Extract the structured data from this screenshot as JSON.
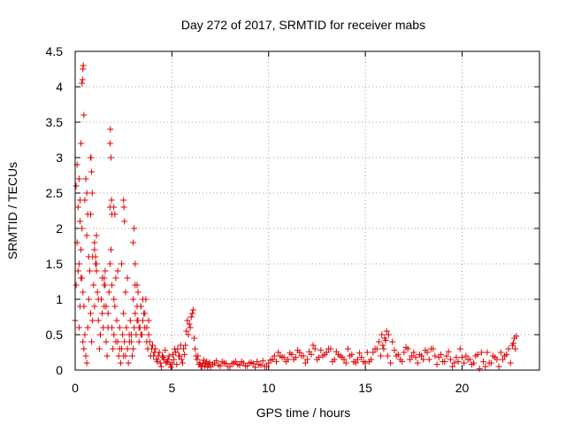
{
  "chart_data": {
    "type": "scatter",
    "title": "Day 272 of 2017, SRMTID for receiver mabs",
    "xlabel": "GPS time / hours",
    "ylabel": "SRMTID / TECUs",
    "xlim": [
      0,
      24
    ],
    "ylim": [
      0,
      4.5
    ],
    "x_ticks": [
      0,
      5,
      10,
      15,
      20
    ],
    "x_tick_labels": [
      "0",
      "5",
      "10",
      "15",
      "20"
    ],
    "y_ticks": [
      0,
      0.5,
      1,
      1.5,
      2,
      2.5,
      3,
      3.5,
      4,
      4.5
    ],
    "y_tick_labels": [
      "0",
      "0.5",
      "1",
      "1.5",
      "2",
      "2.5",
      "3",
      "3.5",
      "4",
      "4.5"
    ],
    "grid": true,
    "marker": "plus",
    "color": "#e00000",
    "series": [
      {
        "x": [
          0.0,
          0.05,
          0.1,
          0.15,
          0.2,
          0.25,
          0.3,
          0.35,
          0.4,
          0.45,
          0.5,
          0.55,
          0.6,
          0.65,
          0.7,
          0.75,
          0.8,
          0.85,
          0.9,
          0.95,
          1.0,
          1.05,
          1.1,
          1.15,
          1.2,
          1.25,
          1.3,
          1.35,
          1.4,
          1.45,
          1.5,
          1.55,
          1.6,
          1.65,
          1.7,
          1.75,
          1.8,
          1.85,
          1.9,
          1.95,
          2.0,
          2.05,
          2.1,
          2.15,
          2.2,
          2.25,
          2.3,
          2.35,
          2.4,
          2.45,
          2.5,
          2.55,
          2.6,
          2.65,
          2.7,
          2.75,
          2.8,
          2.85,
          2.9,
          2.95,
          3.0,
          3.05,
          3.1,
          3.15,
          3.2,
          3.25,
          3.3,
          3.35,
          3.4,
          3.45,
          3.5,
          3.55,
          3.6,
          3.65,
          3.7,
          3.75,
          3.8,
          3.85,
          3.9,
          3.95,
          0.05,
          0.1,
          0.15,
          0.2,
          0.25,
          0.3,
          0.35,
          0.4,
          0.45,
          0.5,
          0.55,
          0.6,
          0.7,
          0.8,
          0.9,
          1.0,
          1.1,
          1.2,
          1.3,
          1.4,
          1.5,
          1.6,
          1.7,
          1.8,
          1.9,
          2.0,
          2.1,
          2.2,
          2.3,
          2.4,
          2.5,
          2.6,
          2.7,
          2.8,
          2.9,
          3.0,
          3.1,
          3.2,
          3.3,
          3.4,
          0.35,
          0.38,
          0.4,
          0.42,
          0.45,
          0.8,
          0.82,
          0.85,
          0.88,
          1.8,
          1.82,
          1.85,
          1.88,
          1.9,
          2.5,
          2.52,
          2.55,
          0.2,
          0.25,
          0.3,
          0.6,
          0.65,
          1.0,
          1.05,
          1.1,
          1.5,
          1.55,
          2.0,
          2.05,
          3.0,
          3.05,
          3.1,
          3.2,
          3.25,
          3.4,
          3.5,
          3.6,
          3.7,
          3.8,
          4.0,
          4.1,
          4.2,
          4.3,
          4.4,
          4.5,
          4.6,
          4.7,
          4.8,
          4.9,
          5.0,
          5.1,
          5.2,
          5.3,
          5.4,
          5.5,
          5.6,
          5.7,
          5.75,
          5.8,
          5.85,
          5.9,
          5.95,
          6.0,
          6.05,
          6.1,
          6.15,
          6.2,
          6.25,
          6.3,
          6.4,
          6.5,
          6.6,
          6.7,
          6.8,
          6.9,
          7.0,
          7.2,
          7.4,
          7.6,
          7.8,
          8.0,
          8.2,
          8.4,
          8.6,
          8.8,
          9.0,
          9.2,
          9.4,
          9.6,
          9.8,
          10.0,
          10.2,
          10.4,
          10.6,
          10.8,
          11.0,
          11.2,
          11.4,
          11.6,
          11.8,
          12.0,
          12.2,
          12.4,
          12.6,
          12.8,
          13.0,
          13.2,
          13.4,
          13.6,
          13.8,
          14.0,
          14.2,
          14.4,
          14.6,
          14.8,
          15.0,
          15.2,
          15.4,
          15.6,
          15.8,
          15.9,
          16.0,
          16.1,
          16.2,
          16.4,
          16.6,
          16.8,
          17.0,
          17.2,
          17.4,
          17.6,
          17.8,
          18.0,
          18.2,
          18.4,
          18.6,
          18.8,
          19.0,
          19.2,
          19.4,
          19.6,
          19.8,
          20.0,
          20.2,
          20.4,
          20.6,
          20.8,
          21.0,
          21.2,
          21.4,
          21.6,
          21.8,
          22.0,
          22.2,
          22.4,
          22.6,
          22.7,
          22.8,
          4.05,
          4.15,
          4.25,
          4.35,
          4.45,
          4.55,
          4.65,
          4.75,
          4.85,
          4.95,
          5.05,
          5.15,
          5.25,
          5.35,
          5.45,
          5.55,
          5.65,
          6.35,
          6.45,
          6.55,
          6.65,
          6.75,
          6.85,
          6.95,
          7.1,
          7.3,
          7.5,
          7.7,
          7.9,
          8.1,
          8.3,
          8.5,
          8.7,
          8.9,
          9.1,
          9.3,
          9.5,
          9.7,
          9.9,
          10.1,
          10.3,
          10.5,
          10.7,
          10.9,
          11.1,
          11.3,
          11.5,
          11.7,
          11.9,
          12.1,
          12.3,
          12.5,
          12.7,
          12.9,
          13.1,
          13.3,
          13.5,
          13.7,
          13.9,
          14.1,
          14.3,
          14.5,
          14.7,
          14.9,
          15.1,
          15.3,
          15.5,
          15.7,
          15.85,
          15.95,
          16.05,
          16.15,
          16.3,
          16.5,
          16.7,
          16.9,
          17.1,
          17.3,
          17.5,
          17.7,
          17.9,
          18.1,
          18.3,
          18.5,
          18.7,
          18.9,
          19.1,
          19.3,
          19.5,
          19.7,
          19.9,
          20.1,
          20.3,
          20.5,
          20.7,
          20.9,
          21.1,
          21.3,
          21.5,
          21.7,
          21.9,
          22.1,
          22.3,
          22.5,
          22.65,
          22.75
        ],
        "y": [
          0.7,
          1.2,
          1.8,
          2.3,
          1.5,
          0.9,
          1.3,
          2.0,
          1.1,
          0.3,
          0.5,
          0.2,
          0.1,
          0.6,
          1.0,
          1.4,
          0.8,
          0.4,
          1.6,
          1.2,
          0.9,
          1.5,
          1.9,
          1.1,
          0.7,
          0.3,
          0.5,
          1.0,
          1.3,
          0.6,
          0.9,
          1.2,
          0.4,
          0.2,
          0.8,
          1.1,
          1.5,
          1.7,
          0.6,
          0.3,
          0.5,
          0.9,
          1.3,
          0.7,
          0.4,
          0.2,
          0.6,
          0.1,
          0.3,
          0.5,
          0.8,
          0.4,
          0.2,
          0.6,
          0.3,
          0.1,
          0.4,
          0.7,
          0.5,
          0.2,
          0.3,
          0.6,
          0.8,
          0.5,
          0.9,
          0.7,
          0.4,
          0.6,
          0.9,
          0.5,
          0.7,
          0.8,
          0.6,
          1.0,
          0.4,
          0.3,
          0.5,
          0.4,
          0.2,
          0.3,
          2.6,
          2.9,
          1.4,
          0.6,
          2.1,
          1.7,
          1.3,
          0.4,
          0.9,
          2.4,
          2.7,
          1.9,
          1.6,
          2.2,
          0.7,
          1.8,
          1.4,
          1.0,
          0.5,
          0.8,
          1.3,
          0.9,
          0.6,
          2.3,
          1.2,
          1.0,
          0.4,
          1.4,
          0.3,
          1.5,
          0.2,
          1.1,
          1.3,
          0.5,
          0.4,
          1.0,
          1.2,
          0.7,
          0.6,
          0.5,
          4.05,
          4.1,
          4.25,
          4.3,
          3.6,
          3.0,
          3.0,
          2.8,
          2.5,
          3.2,
          3.4,
          3.0,
          2.4,
          2.2,
          2.4,
          2.3,
          2.1,
          2.7,
          2.4,
          3.2,
          2.5,
          2.2,
          1.7,
          1.6,
          1.5,
          1.2,
          1.4,
          2.3,
          2.2,
          1.8,
          2.0,
          1.5,
          1.2,
          1.1,
          0.9,
          1.0,
          0.8,
          0.6,
          0.7,
          0.35,
          0.25,
          0.15,
          0.2,
          0.1,
          0.2,
          0.15,
          0.1,
          0.15,
          0.08,
          0.1,
          0.15,
          0.25,
          0.3,
          0.2,
          0.15,
          0.3,
          0.35,
          0.55,
          0.7,
          0.5,
          0.65,
          0.6,
          0.75,
          0.8,
          0.85,
          0.45,
          0.3,
          0.2,
          0.15,
          0.08,
          0.05,
          0.1,
          0.06,
          0.12,
          0.08,
          0.05,
          0.1,
          0.07,
          0.12,
          0.09,
          0.05,
          0.1,
          0.08,
          0.12,
          0.06,
          0.1,
          0.09,
          0.12,
          0.07,
          0.05,
          0.1,
          0.15,
          0.12,
          0.2,
          0.18,
          0.15,
          0.22,
          0.18,
          0.25,
          0.2,
          0.15,
          0.22,
          0.3,
          0.18,
          0.2,
          0.25,
          0.3,
          0.15,
          0.22,
          0.18,
          0.1,
          0.2,
          0.12,
          0.15,
          0.18,
          0.1,
          0.12,
          0.25,
          0.3,
          0.2,
          0.35,
          0.45,
          0.55,
          0.5,
          0.4,
          0.2,
          0.15,
          0.25,
          0.3,
          0.2,
          0.18,
          0.22,
          0.15,
          0.25,
          0.3,
          0.2,
          0.18,
          0.12,
          0.2,
          0.15,
          0.1,
          0.12,
          0.18,
          0.2,
          0.15,
          0.1,
          0.22,
          0.25,
          0.05,
          0.1,
          0.2,
          0.15,
          0.25,
          0.2,
          0.3,
          0.35,
          0.45,
          0.48,
          0.2,
          0.3,
          0.12,
          0.25,
          0.05,
          0.18,
          0.28,
          0.12,
          0.2,
          0.04,
          0.22,
          0.3,
          0.08,
          0.2,
          0.35,
          0.1,
          0.22,
          0.2,
          0.1,
          0.05,
          0.14,
          0.09,
          0.04,
          0.11,
          0.08,
          0.13,
          0.06,
          0.1,
          0.05,
          0.09,
          0.12,
          0.07,
          0.1,
          0.06,
          0.11,
          0.04,
          0.08,
          0.13,
          0.05,
          0.14,
          0.2,
          0.25,
          0.18,
          0.12,
          0.24,
          0.15,
          0.28,
          0.2,
          0.1,
          0.26,
          0.35,
          0.15,
          0.28,
          0.22,
          0.3,
          0.12,
          0.26,
          0.2,
          0.15,
          0.3,
          0.22,
          0.1,
          0.24,
          0.12,
          0.25,
          0.15,
          0.3,
          0.4,
          0.5,
          0.3,
          0.42,
          0.2,
          0.1,
          0.28,
          0.22,
          0.12,
          0.32,
          0.15,
          0.25,
          0.1,
          0.2,
          0.28,
          0.15,
          0.3,
          0.08,
          0.22,
          0.12,
          0.26,
          0.05,
          0.18,
          0.3,
          0.1,
          0.15,
          0.08,
          0.2,
          0.02,
          0.12,
          0.25,
          0.1,
          0.18,
          0.05,
          0.15,
          0.22,
          0.1,
          0.38,
          0.3
        ]
      }
    ]
  }
}
